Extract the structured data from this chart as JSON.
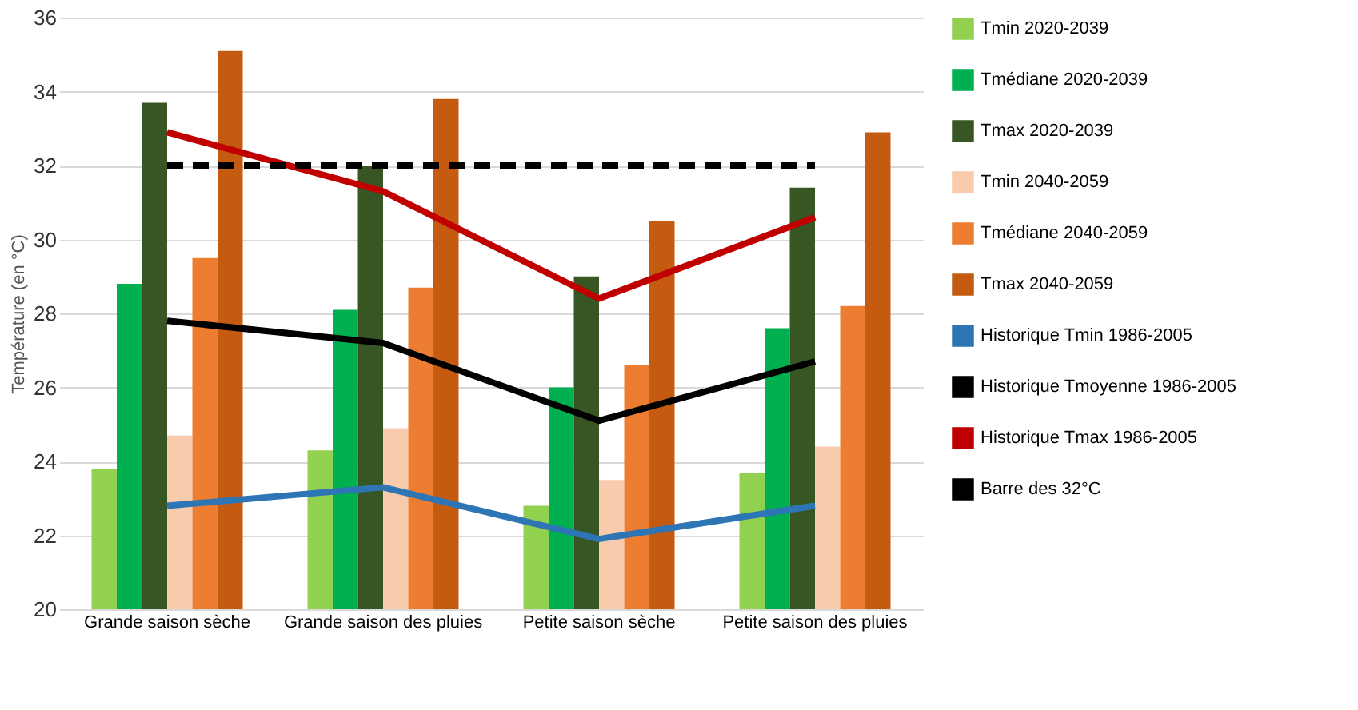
{
  "chart_data": {
    "type": "bar",
    "ylabel": "Température (en °C)",
    "categories": [
      "Grande saison sèche",
      "Grande saison des pluies",
      "Petite saison sèche",
      "Petite saison des pluies"
    ],
    "ylim": [
      20,
      36
    ],
    "yticks": [
      20,
      22,
      24,
      26,
      28,
      30,
      32,
      34,
      36
    ],
    "grid": "y",
    "legend": "right",
    "series": [
      {
        "name": "Tmin 2020-2039",
        "color": "#92d050",
        "values": [
          23.8,
          24.3,
          22.8,
          23.7
        ]
      },
      {
        "name": "Tmédiane 2020-2039",
        "color": "#00b050",
        "values": [
          28.8,
          28.1,
          26.0,
          27.6
        ]
      },
      {
        "name": "Tmax 2020-2039",
        "color": "#375623",
        "values": [
          33.7,
          32.0,
          29.0,
          31.4
        ]
      },
      {
        "name": "Tmin 2040-2059",
        "color": "#f8cbad",
        "values": [
          24.7,
          24.9,
          23.5,
          24.4
        ]
      },
      {
        "name": "Tmédiane 2040-2059",
        "color": "#ed7d31",
        "values": [
          29.5,
          28.7,
          26.6,
          28.2
        ]
      },
      {
        "name": "Tmax 2040-2059",
        "color": "#c55a11",
        "values": [
          35.1,
          33.8,
          30.5,
          32.9
        ]
      },
      {
        "name": "Historique Tmin 1986-2005",
        "color": "#2e75b6",
        "type": "line",
        "values": [
          22.8,
          23.3,
          21.9,
          22.8
        ]
      },
      {
        "name": "Historique Tmoyenne 1986-2005",
        "color": "#000000",
        "type": "line",
        "values": [
          27.8,
          27.2,
          25.1,
          26.7
        ]
      },
      {
        "name": "Historique Tmax 1986-2005",
        "color": "#c00000",
        "type": "line",
        "values": [
          32.9,
          31.3,
          28.4,
          30.6
        ]
      },
      {
        "name": "Barre des 32°C",
        "color": "#000000",
        "type": "line",
        "line_style": "dashed",
        "values": [
          32,
          32,
          32,
          32
        ]
      }
    ]
  }
}
